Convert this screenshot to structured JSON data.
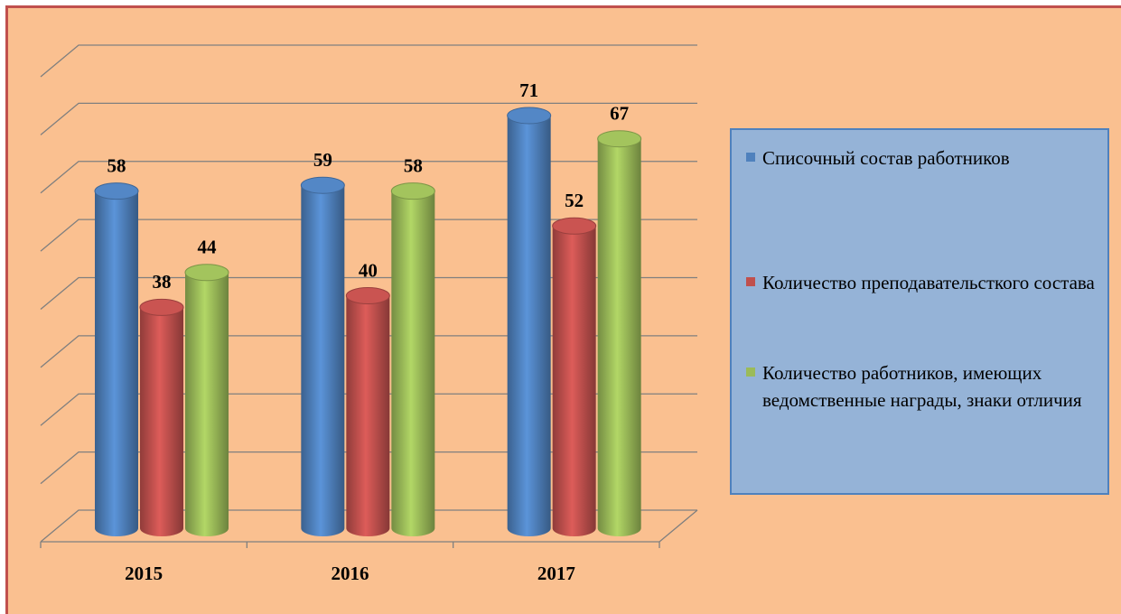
{
  "chart_data": {
    "type": "bar3d",
    "categories": [
      "2015",
      "2016",
      "2017"
    ],
    "series": [
      {
        "name": "Списочный состав работников",
        "color": "#4f81bd",
        "values": [
          58,
          59,
          71
        ]
      },
      {
        "name": "Количество преподавательсткого состава",
        "color": "#c0504d",
        "values": [
          38,
          40,
          52
        ]
      },
      {
        "name": "Количество работников, имеющих ведомственные награды, знаки отличия",
        "color": "#9bbb59",
        "values": [
          44,
          58,
          67
        ]
      }
    ],
    "ylim": [
      0,
      80
    ],
    "yticks": [
      0,
      10,
      20,
      30,
      40,
      50,
      60,
      70,
      80
    ],
    "grid": true,
    "legend": "right"
  }
}
